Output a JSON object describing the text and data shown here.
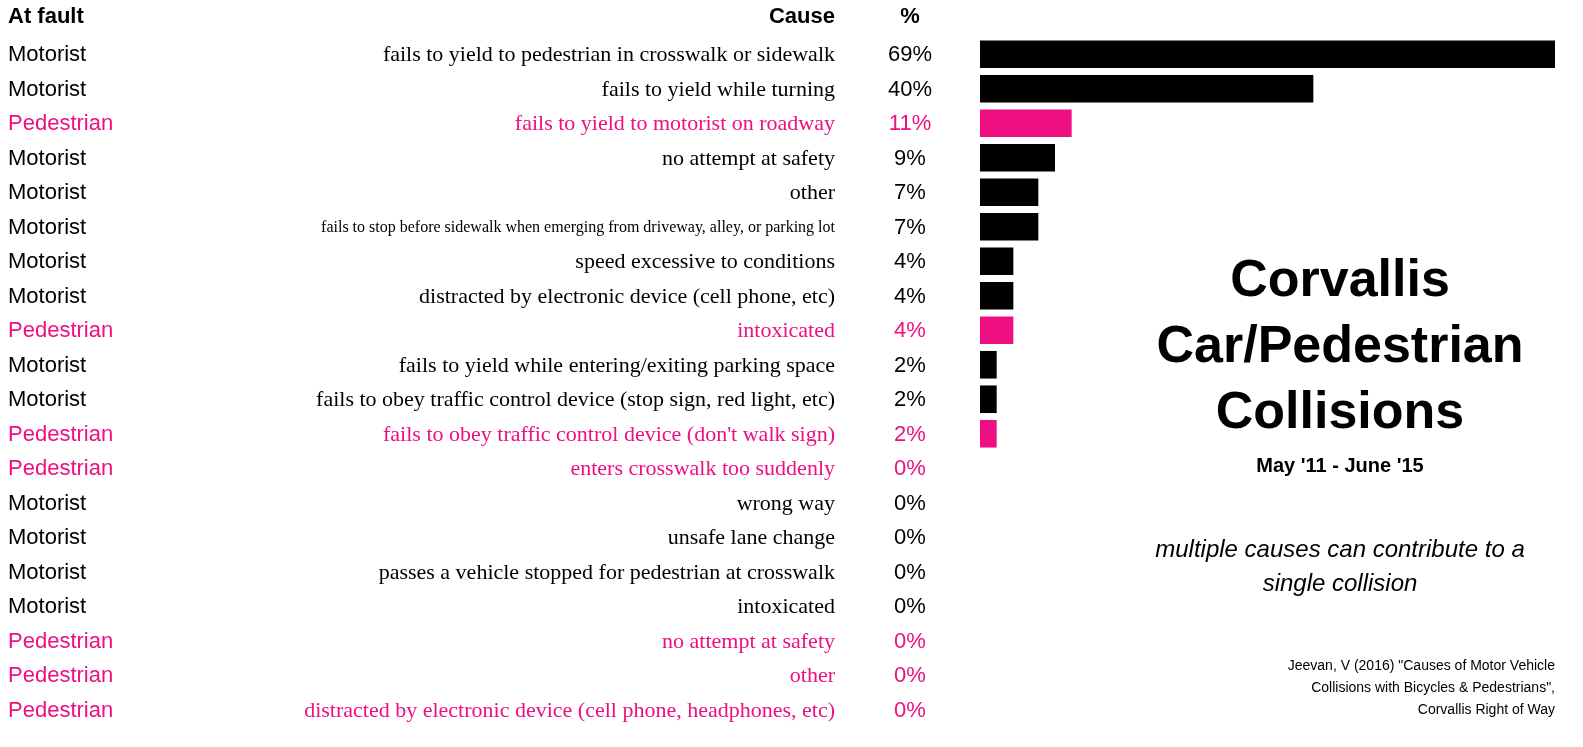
{
  "chart_data": {
    "type": "bar",
    "orientation": "horizontal",
    "title": "Corvallis Car/Pedestrian Collisions",
    "subtitle": "May '11 - June '15",
    "legend_title": "At fault",
    "ylabel": "Cause",
    "xlabel": "%",
    "categories": [
      "fails to yield to pedestrian in crosswalk or sidewalk",
      "fails to yield while turning",
      "fails to yield to motorist on roadway",
      "no attempt at safety",
      "other",
      "fails to stop before sidewalk when emerging from driveway, alley, or parking lot",
      "speed excessive to conditions",
      "distracted by electronic device (cell phone, etc)",
      "intoxicated",
      "fails to yield while entering/exiting parking space",
      "fails to obey traffic control device (stop sign, red light, etc)",
      "fails to obey traffic control device (don't walk sign)",
      "enters crosswalk too suddenly",
      "wrong way",
      "unsafe lane change",
      "passes a vehicle stopped for pedestrian at crosswalk",
      "intoxicated",
      "no attempt at safety",
      "other",
      "distracted by electronic device (cell phone, headphones, etc)"
    ],
    "series": [
      {
        "name": "Motorist",
        "color": "#000000",
        "values": [
          69,
          40,
          null,
          9,
          7,
          7,
          4,
          4,
          null,
          2,
          2,
          null,
          null,
          0,
          0,
          0,
          0,
          null,
          null,
          null
        ],
        "value_labels": [
          "69%",
          "40%",
          null,
          "9%",
          "7%",
          "7%",
          "4%",
          "4%",
          null,
          "2%",
          "2%",
          null,
          null,
          "0%",
          "0%",
          "0%",
          "0%",
          null,
          null,
          null
        ]
      },
      {
        "name": "Pedestrian",
        "color": "#ee0f82",
        "values": [
          null,
          null,
          11,
          null,
          null,
          null,
          null,
          null,
          4,
          null,
          null,
          2,
          0,
          null,
          null,
          null,
          null,
          0,
          0,
          0
        ],
        "value_labels": [
          null,
          null,
          "11%",
          null,
          null,
          null,
          null,
          null,
          "4%",
          null,
          null,
          "2%",
          "0%",
          null,
          null,
          null,
          null,
          "0%",
          "0%",
          "0%"
        ]
      }
    ],
    "annotations": [
      "multiple causes can contribute to a single collision",
      "Jeevan, V (2016) \"Causes of Motor Vehicle Collisions with Bicycles & Pedestrians\", Corvallis Right of Way"
    ]
  }
}
